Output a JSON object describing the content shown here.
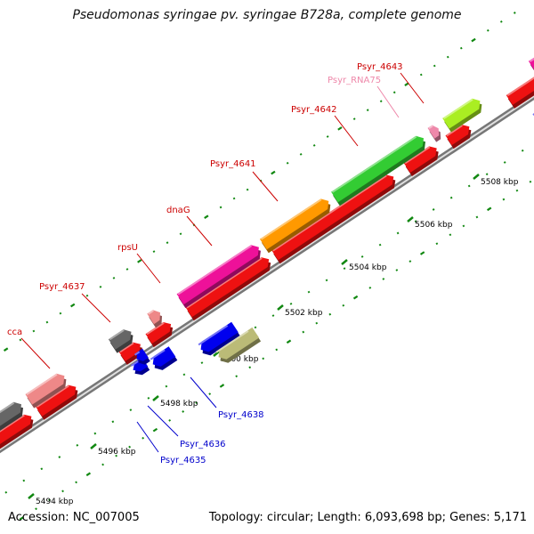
{
  "title": "Pseudomonas syringae pv. syringae B728a, complete genome",
  "footer": {
    "accession": "Accession: NC_007005",
    "summary": "Topology: circular; Length: 6,093,698 bp; Genes: 5,171"
  },
  "colors": {
    "backbone": "#888888",
    "label_forward": "#cc0000",
    "label_reverse": "#0000cc",
    "label_rna": "#ee88aa",
    "tick": "#118811"
  },
  "kbp_labels": [
    "5494 kbp",
    "5496 kbp",
    "5498 kbp",
    "5500 kbp",
    "5502 kbp",
    "5504 kbp",
    "5506 kbp",
    "5508 kbp"
  ],
  "features": [
    {
      "label": "cca",
      "color": "#ee8888",
      "strand": "forward"
    },
    {
      "label": "Psyr_4637",
      "color": "#666666",
      "strand": "forward"
    },
    {
      "label": "rpsU",
      "color": "#ee8888",
      "strand": "forward"
    },
    {
      "label": "dnaG",
      "color": "#ee1199",
      "strand": "forward"
    },
    {
      "label": "Psyr_4641",
      "color": "#ff9900",
      "strand": "forward"
    },
    {
      "label": "Psyr_4642",
      "color": "#33cc33",
      "strand": "forward"
    },
    {
      "label": "Psyr_RNA75",
      "color": "#ee88aa",
      "strand": "forward"
    },
    {
      "label": "Psyr_4643",
      "color": "#aaee22",
      "strand": "forward"
    },
    {
      "label": "Psyr_4635",
      "color": "#0000ee",
      "strand": "reverse"
    },
    {
      "label": "Psyr_4636",
      "color": "#0000ee",
      "strand": "reverse"
    },
    {
      "label": "Psyr_4638",
      "color": "#bbbb77",
      "strand": "reverse"
    }
  ]
}
